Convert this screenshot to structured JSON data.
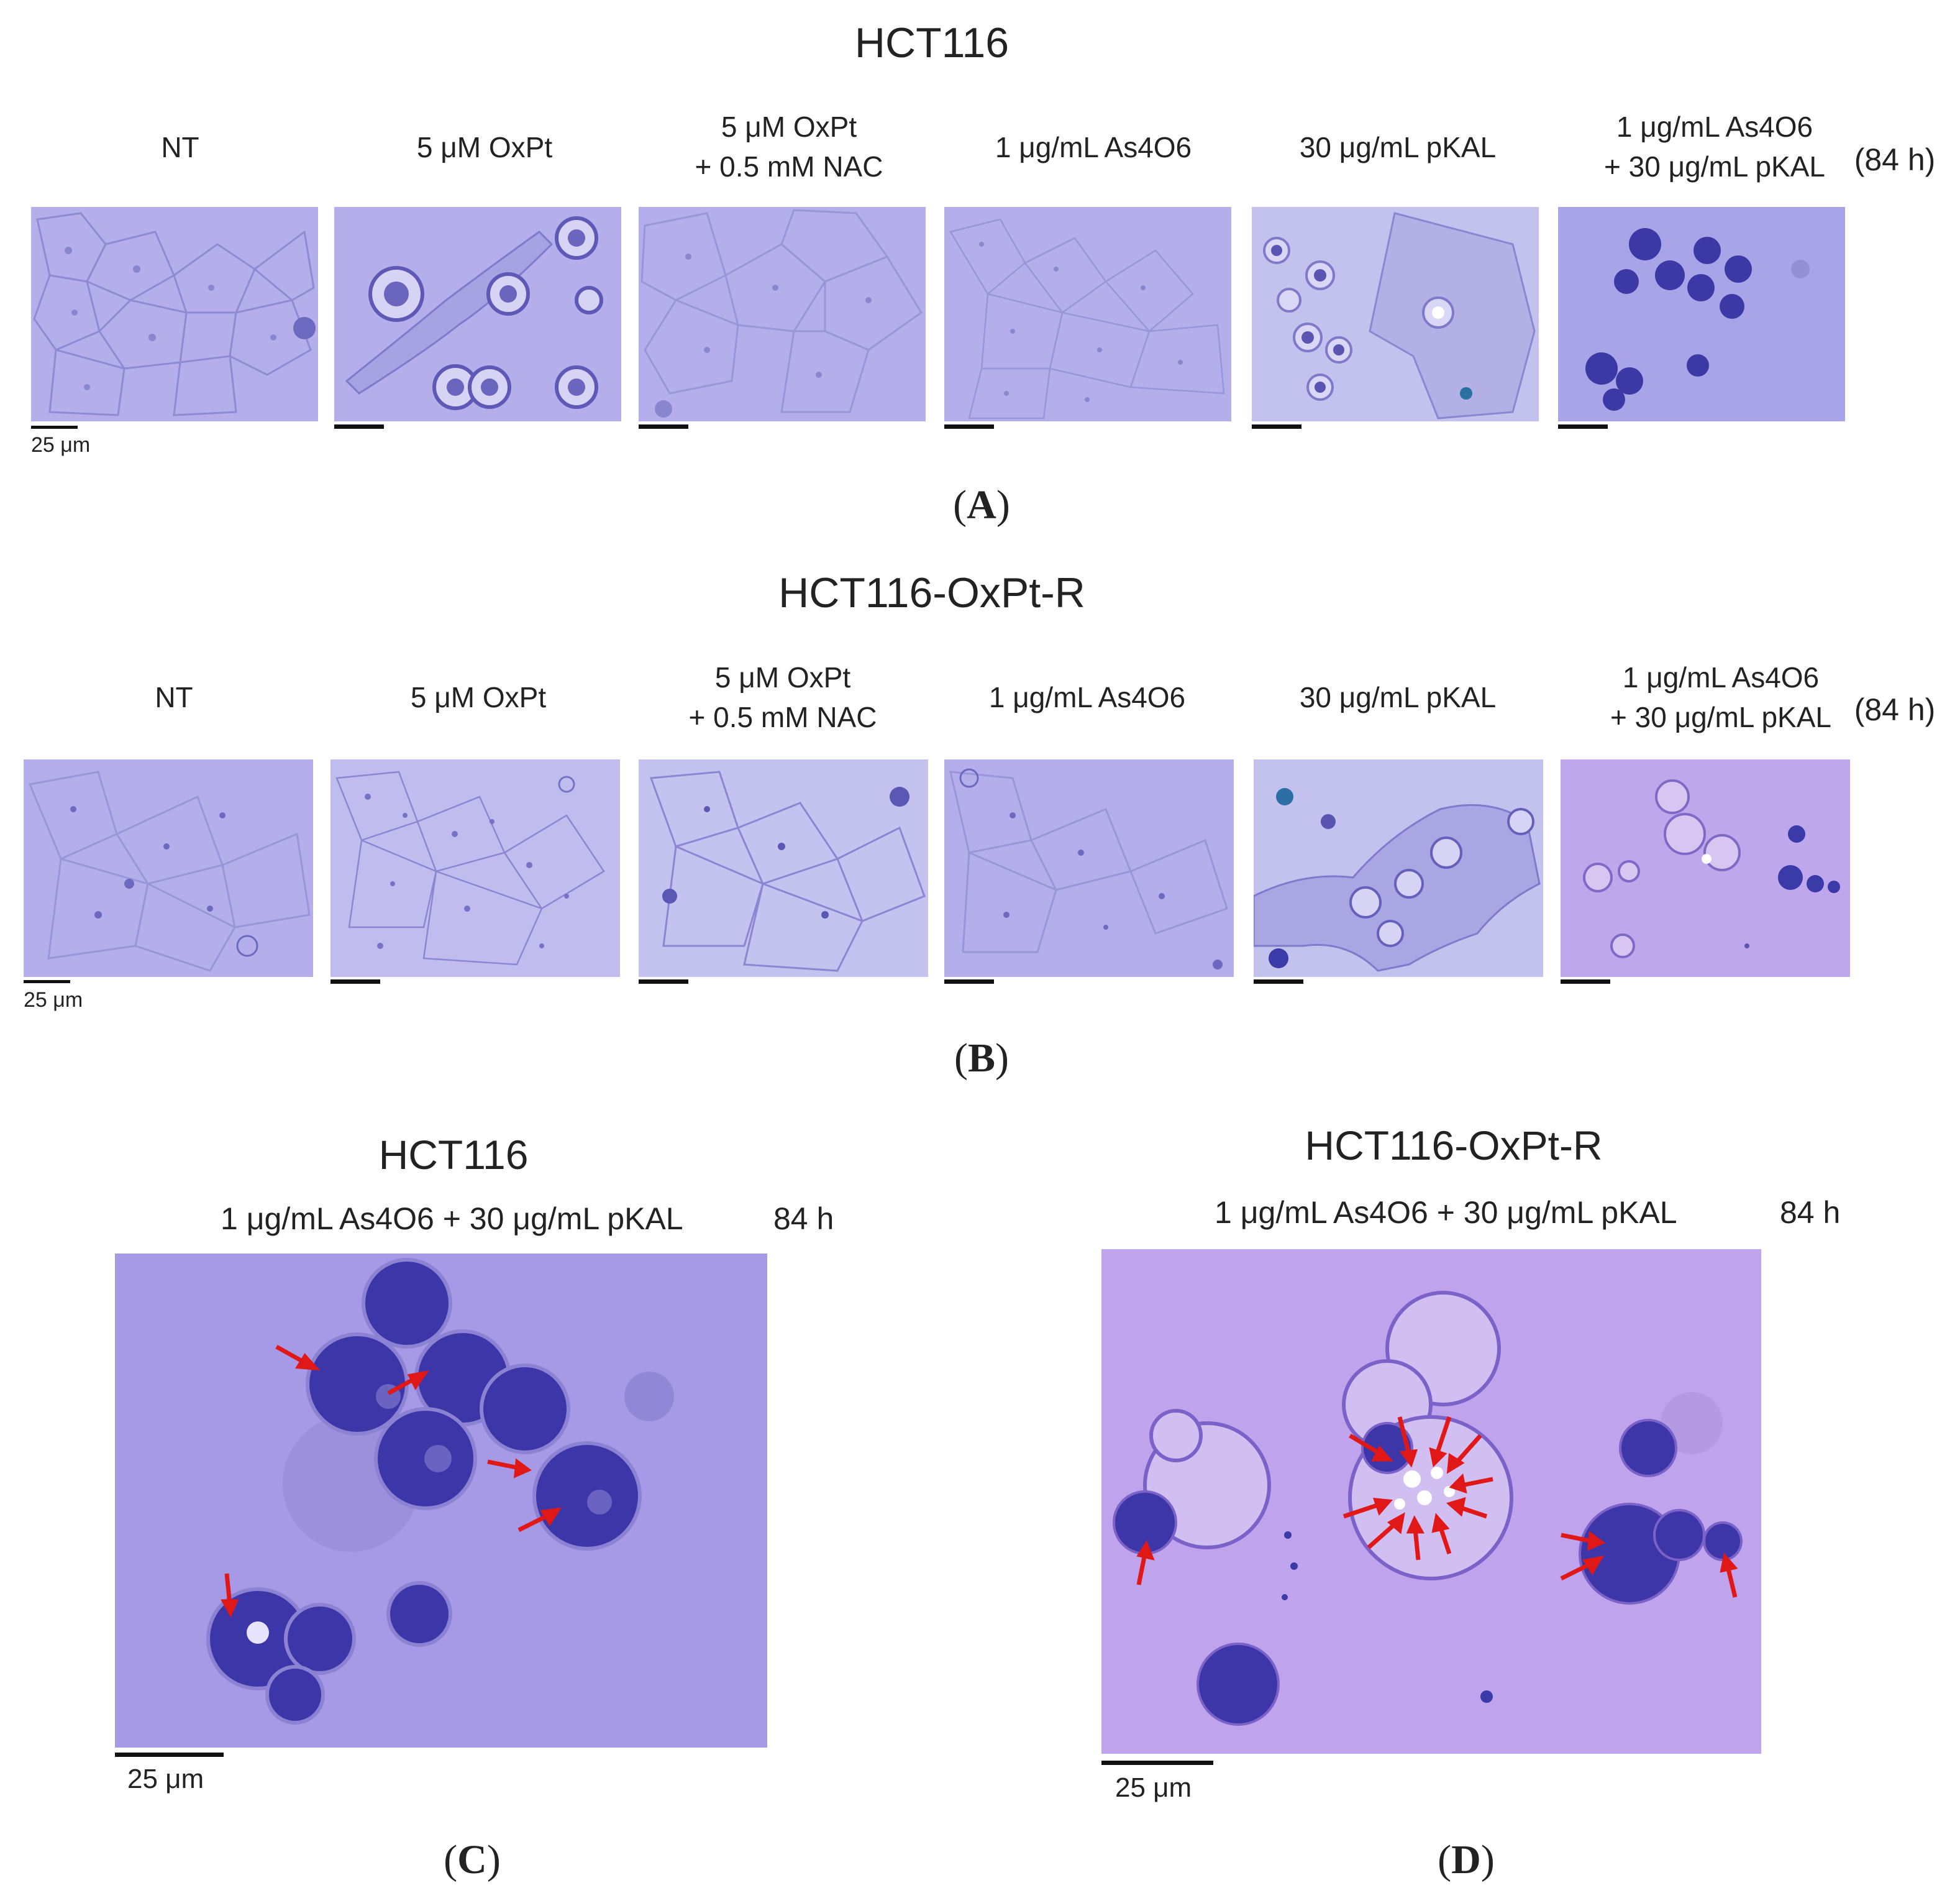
{
  "panel_A": {
    "cell_line": "HCT116",
    "letter": "A",
    "duration": "(84 h)",
    "conditions": [
      {
        "line1": "",
        "line2": "NT"
      },
      {
        "line1": "",
        "line2": "5 μM OxPt"
      },
      {
        "line1": "5 μM OxPt",
        "line2": "+ 0.5 mM NAC"
      },
      {
        "line1": "",
        "line2": "1 μg/mL As4O6"
      },
      {
        "line1": "",
        "line2": "30 μg/mL pKAL"
      },
      {
        "line1": "1 μg/mL As4O6",
        "line2": "+ 30 μg/mL pKAL"
      }
    ],
    "scale_bar": "25 μm"
  },
  "panel_B": {
    "cell_line": "HCT116-OxPt-R",
    "letter": "B",
    "duration": "(84 h)",
    "conditions": [
      {
        "line1": "",
        "line2": "NT"
      },
      {
        "line1": "",
        "line2": "5 μM OxPt"
      },
      {
        "line1": "5 μM OxPt",
        "line2": "+ 0.5 mM NAC"
      },
      {
        "line1": "",
        "line2": "1 μg/mL As4O6"
      },
      {
        "line1": "",
        "line2": "30 μg/mL pKAL"
      },
      {
        "line1": "1 μg/mL As4O6",
        "line2": "+ 30 μg/mL pKAL"
      }
    ],
    "scale_bar": "25 μm"
  },
  "panel_C": {
    "cell_line": "HCT116",
    "letter": "C",
    "treatment": "1 μg/mL As4O6 + 30 μg/mL pKAL",
    "duration": "84 h",
    "scale_bar": "25 μm"
  },
  "panel_D": {
    "cell_line": "HCT116-OxPt-R",
    "letter": "D",
    "treatment": "1 μg/mL As4O6 + 30 μg/mL pKAL",
    "duration": "84 h",
    "scale_bar": "25 μm"
  },
  "colors": {
    "background": "#b4afeb",
    "cell_outline": "#8f8ad4",
    "nucleus_dark": "#3a3aa8",
    "arrow": "#e01818",
    "scale_bar": "#111111"
  }
}
